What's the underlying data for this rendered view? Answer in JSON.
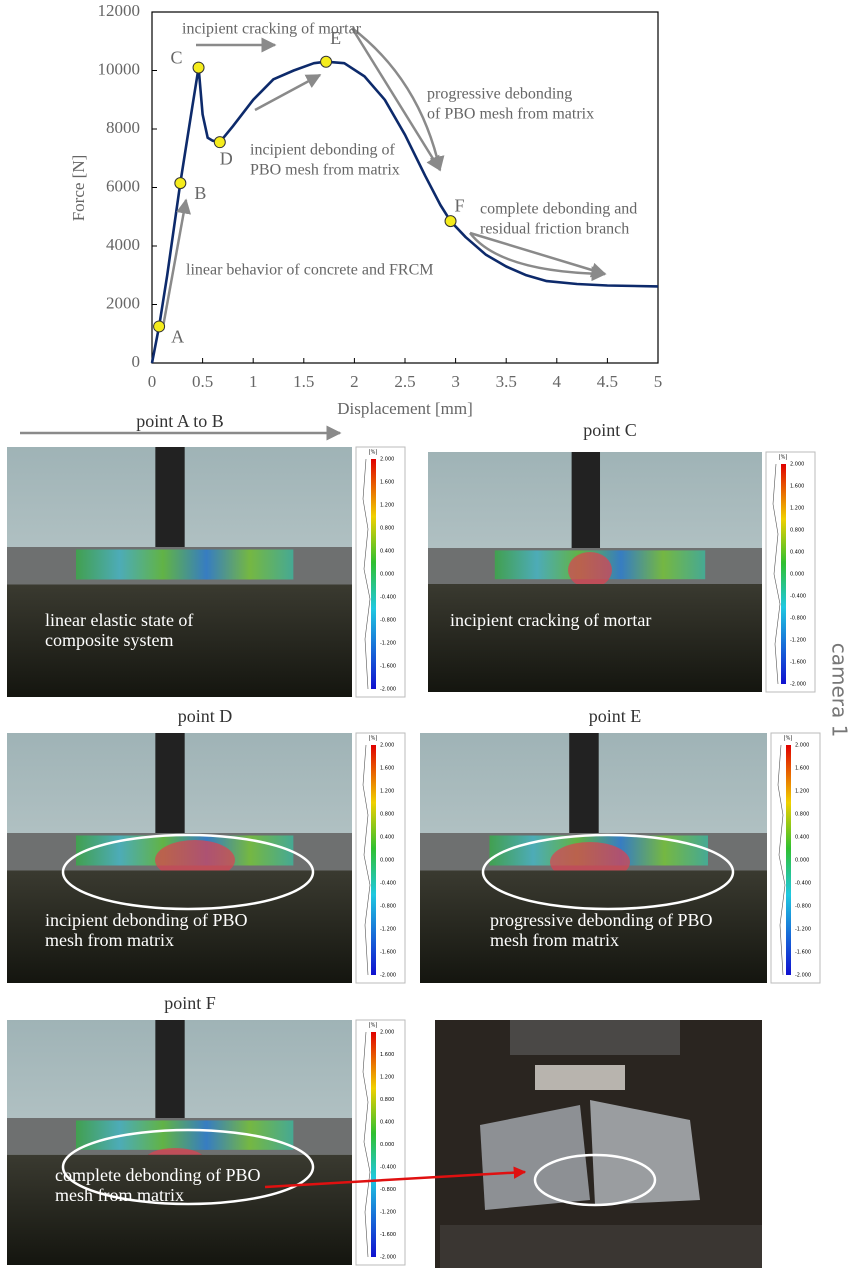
{
  "chart_data": {
    "type": "line",
    "xlabel": "Displacement [mm]",
    "ylabel": "Force [N]",
    "x": [
      0,
      0.07,
      0.15,
      0.28,
      0.4,
      0.46,
      0.5,
      0.55,
      0.6,
      0.67,
      0.8,
      1.0,
      1.2,
      1.4,
      1.6,
      1.72,
      1.9,
      2.1,
      2.3,
      2.5,
      2.7,
      2.85,
      2.95,
      3.1,
      3.3,
      3.5,
      3.7,
      3.9,
      4.2,
      4.5,
      5.0
    ],
    "values": [
      0,
      1250,
      3000,
      6150,
      8800,
      10100,
      8500,
      7700,
      7600,
      7550,
      8100,
      9000,
      9700,
      10000,
      10250,
      10300,
      10250,
      9800,
      9000,
      7800,
      6400,
      5400,
      4850,
      4300,
      3700,
      3300,
      3000,
      2800,
      2700,
      2650,
      2620
    ],
    "color": "#0d2a6b",
    "points": [
      {
        "label": "A",
        "x": 0.07,
        "y": 1250
      },
      {
        "label": "B",
        "x": 0.28,
        "y": 6150
      },
      {
        "label": "C",
        "x": 0.46,
        "y": 10100
      },
      {
        "label": "D",
        "x": 0.67,
        "y": 7550
      },
      {
        "label": "E",
        "x": 1.72,
        "y": 10300
      },
      {
        "label": "F",
        "x": 2.95,
        "y": 4850
      }
    ],
    "point_color": "#f5ec1c",
    "annotations": [
      [
        "incipient cracking of mortar"
      ],
      [
        "progressive debonding",
        "of PBO mesh from matrix"
      ],
      [
        "incipient debonding of",
        "PBO mesh from matrix"
      ],
      [
        "complete debonding and",
        "residual friction branch"
      ],
      [
        "linear behavior of concrete and FRCM"
      ]
    ],
    "xlim": [
      0,
      5
    ],
    "ylim": [
      0,
      12000
    ],
    "xticks": [
      0,
      0.5,
      1,
      1.5,
      2,
      2.5,
      3,
      3.5,
      4,
      4.5,
      5
    ],
    "yticks": [
      0,
      2000,
      4000,
      6000,
      8000,
      10000,
      12000
    ]
  },
  "colorbar": {
    "unit": "[%]",
    "labels": [
      "2.000",
      "1.600",
      "1.200",
      "0.800",
      "0.400",
      "0.000",
      "-0.400",
      "-0.800",
      "-1.200",
      "-1.600",
      "-2.000"
    ]
  },
  "panels": [
    {
      "caption": "point A to B",
      "text": [
        "linear elastic state of",
        "composite system"
      ]
    },
    {
      "caption": "point C",
      "text": [
        "incipient cracking of mortar"
      ]
    },
    {
      "caption": "point D",
      "text": [
        "incipient debonding of PBO",
        "mesh from matrix"
      ]
    },
    {
      "caption": "point E",
      "text": [
        "progressive debonding of PBO",
        "mesh from matrix"
      ]
    },
    {
      "caption": "point F",
      "text": [
        "complete debonding of PBO",
        "mesh from matrix"
      ]
    }
  ],
  "side_label": "camera 1"
}
